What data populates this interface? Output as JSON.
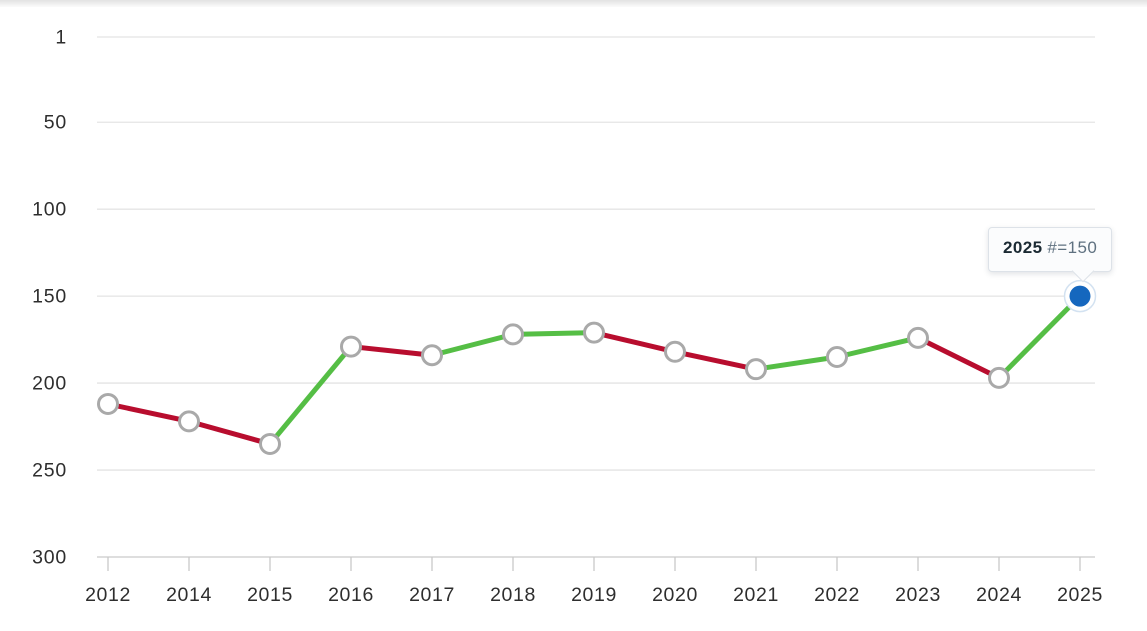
{
  "tooltip": {
    "year": "2025",
    "value": "#=150"
  },
  "chart_data": {
    "type": "line",
    "title": "",
    "xlabel": "",
    "ylabel": "",
    "categories": [
      "2012",
      "2014",
      "2015",
      "2016",
      "2017",
      "2018",
      "2019",
      "2020",
      "2021",
      "2022",
      "2023",
      "2024",
      "2025"
    ],
    "values": [
      212,
      222,
      235,
      179,
      184,
      172,
      171,
      182,
      192,
      185,
      174,
      197,
      150
    ],
    "segment_trends": [
      "decline",
      "decline",
      "improve",
      "decline",
      "improve",
      "improve",
      "decline",
      "decline",
      "improve",
      "improve",
      "decline",
      "improve"
    ],
    "y_ticks": [
      1,
      50,
      100,
      150,
      200,
      250,
      300
    ],
    "ylim": [
      1,
      300
    ],
    "y_axis_inverted": true,
    "grid": true,
    "legend": false,
    "highlight_index": 12,
    "highlight_tooltip": {
      "label": "2025",
      "value": 150,
      "value_text": "#=150"
    },
    "colors": {
      "improve_green": "#55BE45",
      "decline_red": "#B80D2E",
      "highlight_blue": "#1567BE",
      "highlight_halo": "#D3E2F1",
      "marker_fill": "#FFFFFF",
      "marker_stroke": "#A9A9A9",
      "gridline": "#E4E4E4",
      "axis_line": "#C9C9C9",
      "label_text": "#2E2E2E"
    }
  }
}
